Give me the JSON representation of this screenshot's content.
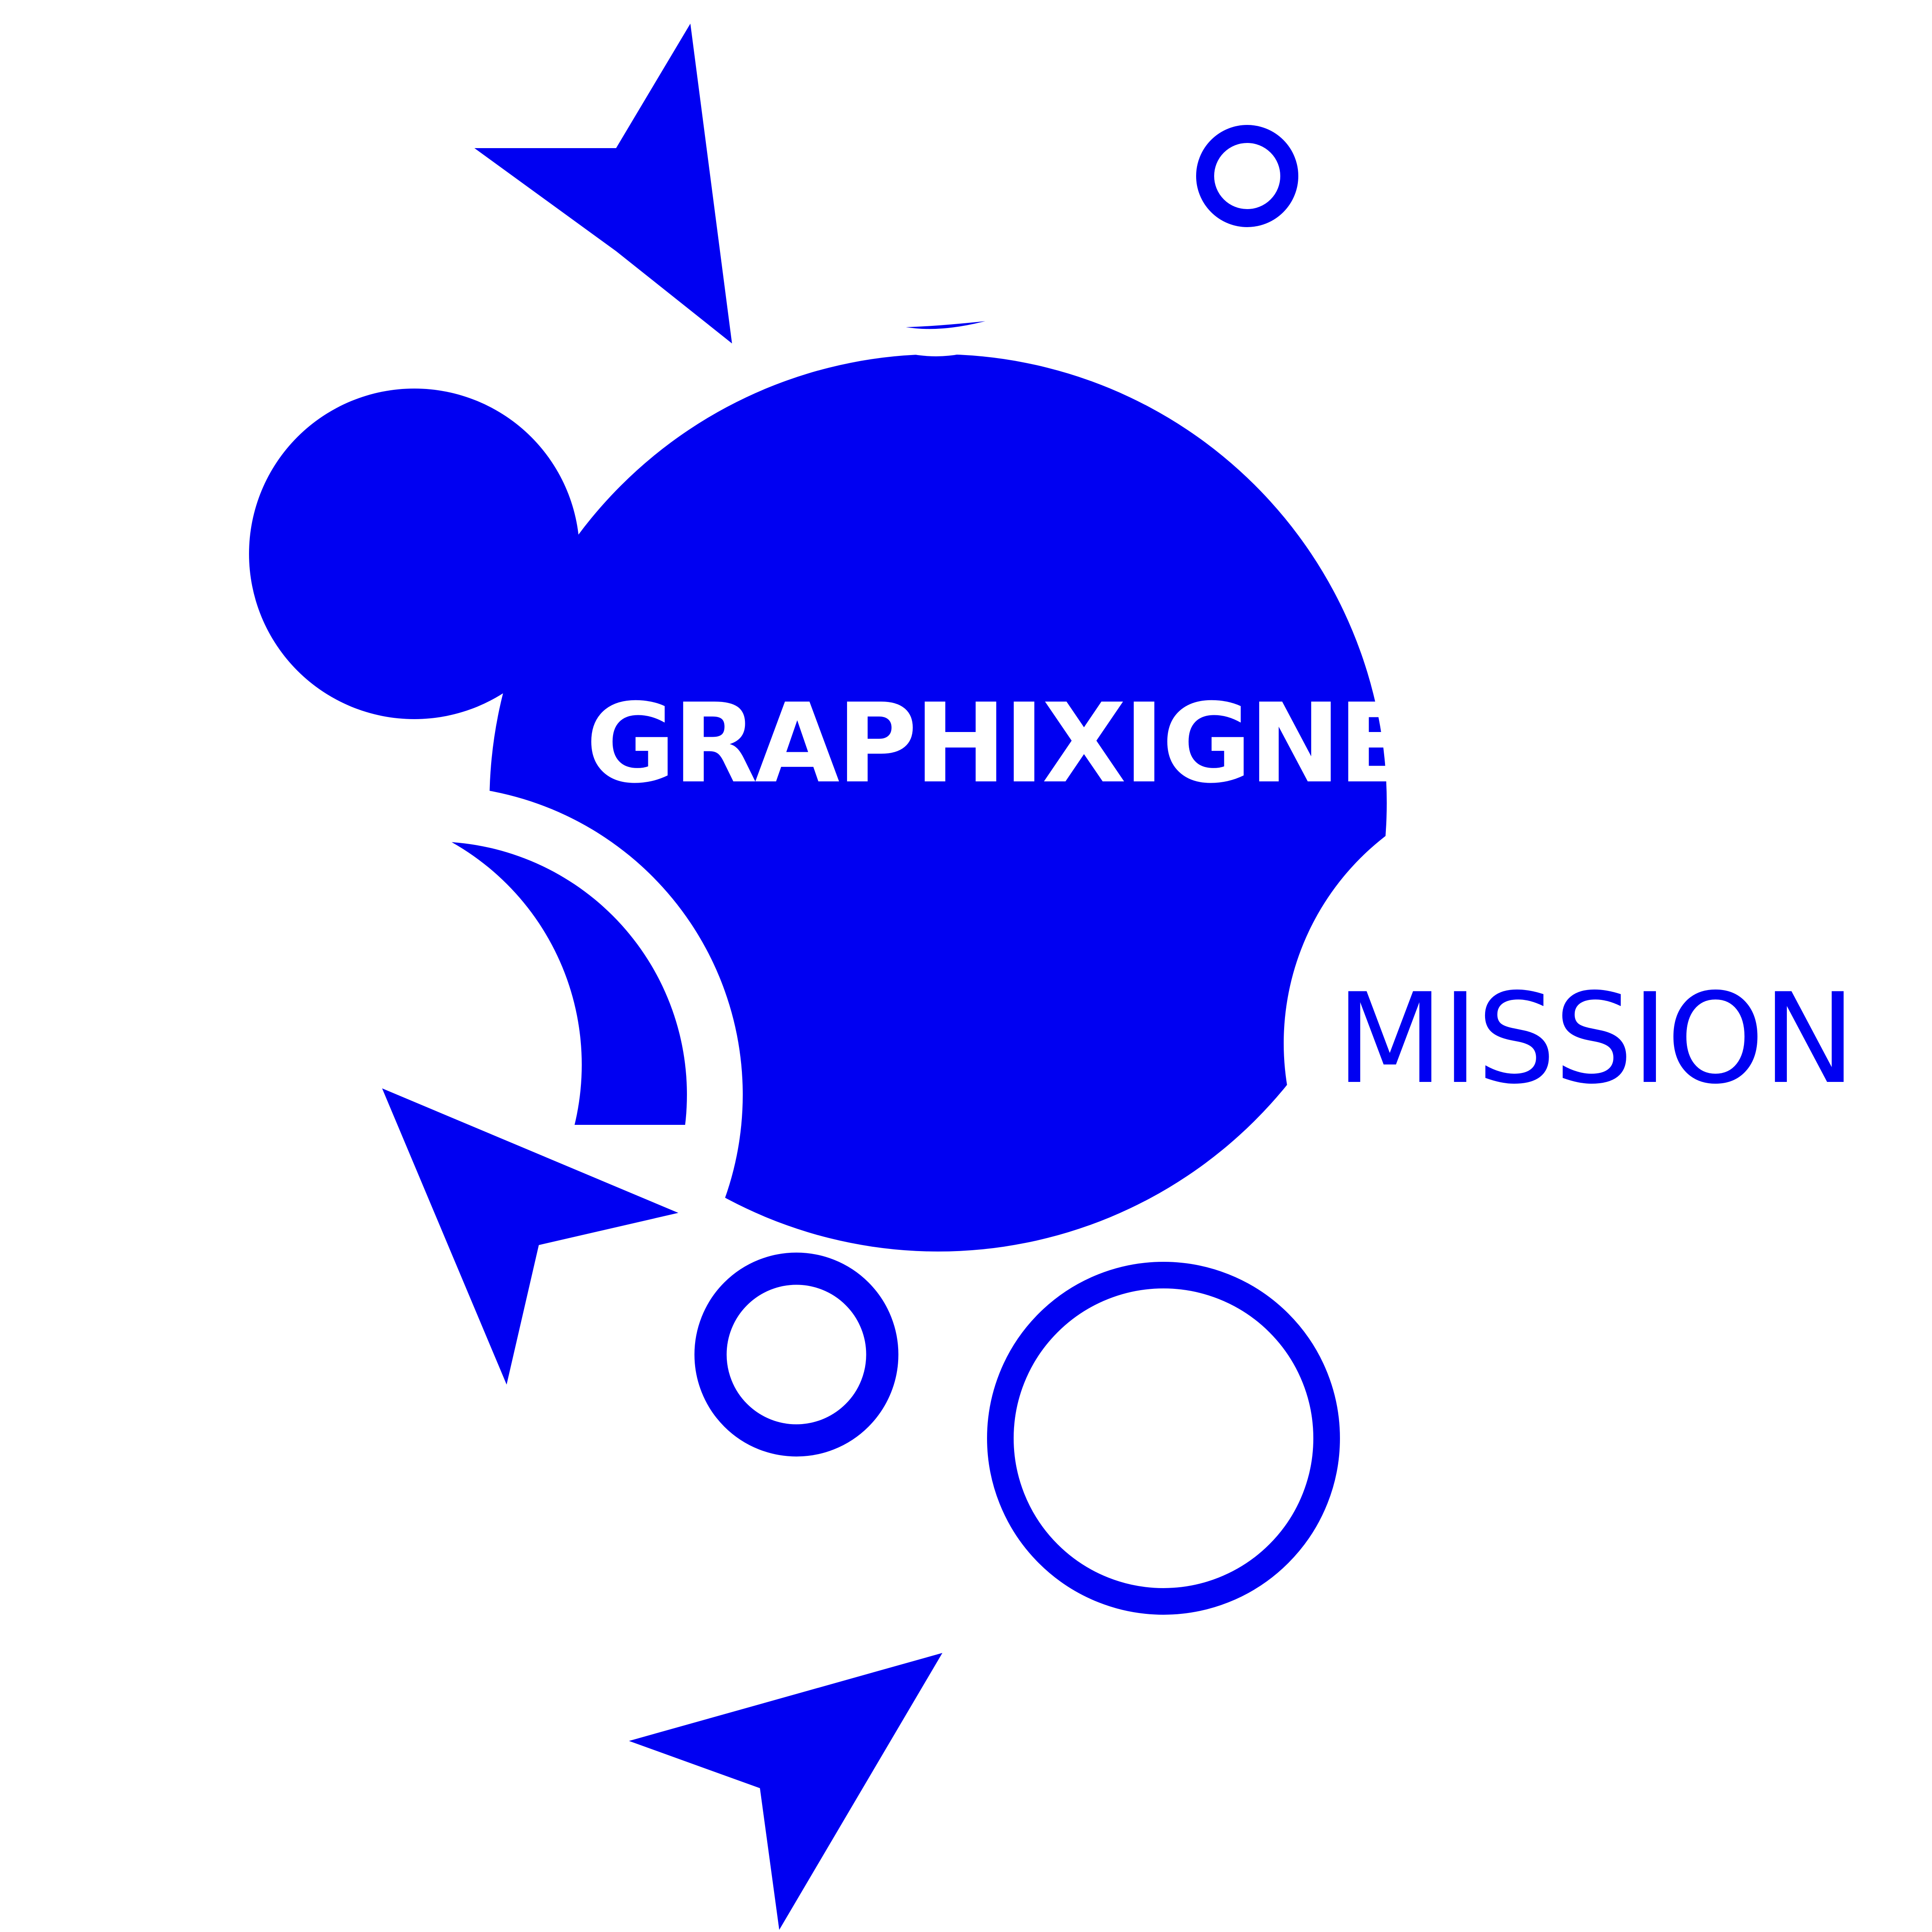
{
  "logo": {
    "brand_name": "GRAPHIXIGNER",
    "tagline": "MISSION"
  },
  "colors": {
    "primary": "#0000f2",
    "background": "#ffffff",
    "text_on_primary": "#ffffff"
  },
  "icons": {
    "main_shape": "blob-circle-icon",
    "top_arrow": "arrowhead-icon",
    "left_arrow": "arrowhead-icon",
    "bottom_arrow": "arrowhead-icon",
    "rings": "ring-icon",
    "side_circle": "circle-icon"
  }
}
